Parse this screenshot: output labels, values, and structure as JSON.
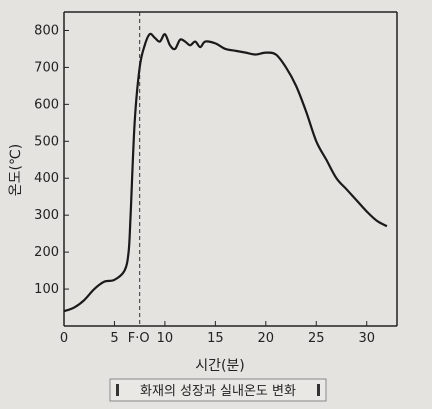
{
  "chart_data": {
    "type": "line",
    "title": "",
    "caption": "화재의 성장과 실내온도 변화",
    "xlabel": "시간(분)",
    "ylabel": "온도(℃)",
    "xlim": [
      0,
      33
    ],
    "ylim": [
      0,
      850
    ],
    "x_ticks": [
      {
        "value": 0,
        "label": "0"
      },
      {
        "value": 5,
        "label": "5"
      },
      {
        "value": 10,
        "label": "10"
      },
      {
        "value": 15,
        "label": "15"
      },
      {
        "value": 20,
        "label": "20"
      },
      {
        "value": 25,
        "label": "25"
      },
      {
        "value": 30,
        "label": "30"
      }
    ],
    "y_ticks": [
      {
        "value": 100,
        "label": "100"
      },
      {
        "value": 200,
        "label": "200"
      },
      {
        "value": 300,
        "label": "300"
      },
      {
        "value": 400,
        "label": "400"
      },
      {
        "value": 500,
        "label": "500"
      },
      {
        "value": 600,
        "label": "600"
      },
      {
        "value": 700,
        "label": "700"
      },
      {
        "value": 800,
        "label": "800"
      }
    ],
    "annotations": [
      {
        "label": "F·O",
        "x": 7.5,
        "style": "dashed-vertical-line"
      }
    ],
    "grid": false,
    "series": [
      {
        "x": [
          0,
          1,
          2,
          3,
          4,
          5,
          6,
          6.4,
          6.6,
          7,
          7.5,
          8,
          8.5,
          9,
          9.5,
          10,
          10.5,
          11,
          11.5,
          12,
          12.5,
          13,
          13.5,
          14,
          15,
          16,
          17,
          18,
          19,
          20,
          21,
          22,
          23,
          24,
          25,
          26,
          27,
          28,
          29,
          30,
          31,
          32
        ],
        "y": [
          40,
          50,
          70,
          100,
          120,
          125,
          150,
          200,
          300,
          550,
          700,
          760,
          790,
          780,
          770,
          790,
          760,
          750,
          775,
          770,
          760,
          770,
          755,
          770,
          765,
          750,
          745,
          740,
          735,
          740,
          735,
          700,
          650,
          580,
          500,
          450,
          400,
          370,
          340,
          310,
          285,
          270
        ]
      }
    ],
    "line_color": "#1a1a1a"
  }
}
